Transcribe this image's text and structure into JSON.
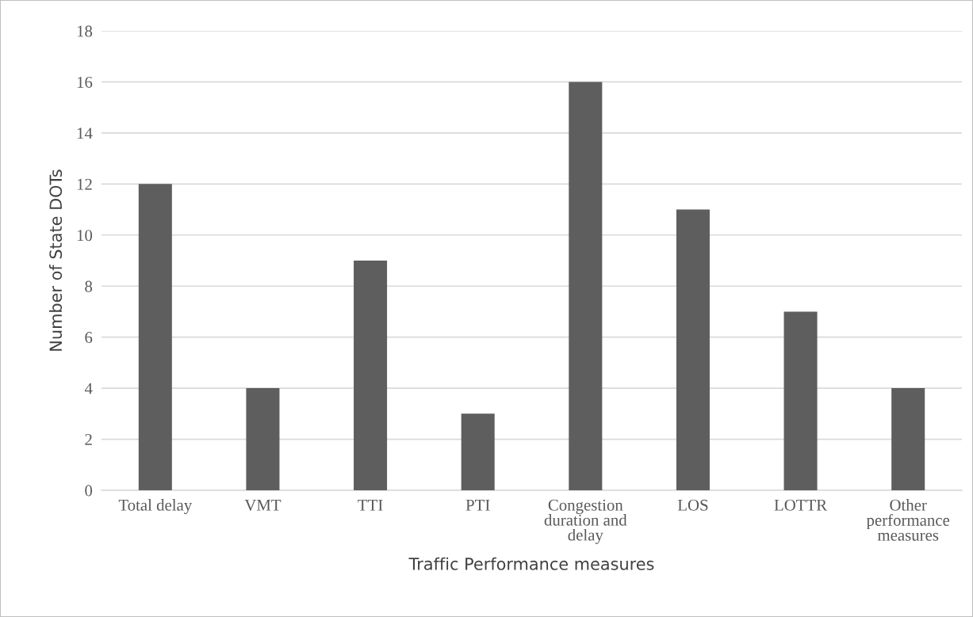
{
  "chart_data": {
    "type": "bar",
    "xlabel": "Traffic Performance measures",
    "ylabel": "Number of State DOTs",
    "categories": [
      "Total delay",
      "VMT",
      "TTI",
      "PTI",
      "Congestion\nduration and\ndelay",
      "LOS",
      "LOTTR",
      "Other\nperformance\nmeasures"
    ],
    "values": [
      12,
      4,
      9,
      3,
      16,
      11,
      7,
      4
    ],
    "color": "#5e5e5e",
    "ylim": [
      0,
      18
    ],
    "yticks": [
      0,
      2,
      4,
      6,
      8,
      10,
      12,
      14,
      16,
      18
    ],
    "grid": "y",
    "legend": false
  }
}
